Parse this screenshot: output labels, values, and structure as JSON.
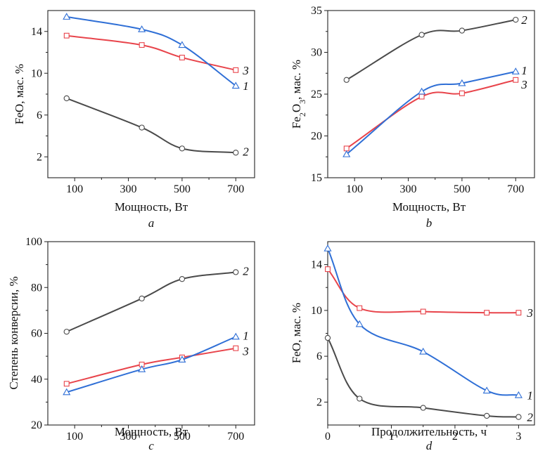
{
  "colors": {
    "s1": "#2f6fd6",
    "s2": "#4a4a4a",
    "s3": "#e8444b"
  },
  "chart_data": [
    {
      "id": "a",
      "type": "line",
      "panel_label": "a",
      "xlabel": "Мощность, Вт",
      "ylabel": "FeO, мас. %",
      "xlim": [
        0,
        770
      ],
      "ylim": [
        0,
        16
      ],
      "xticks": [
        100,
        300,
        500,
        700
      ],
      "yticks": [
        2,
        6,
        10,
        14
      ],
      "xtick_labels": [
        "100",
        "300",
        "500",
        "700"
      ],
      "ytick_labels": [
        "2",
        "6",
        "10",
        "14"
      ],
      "series": [
        {
          "label": "1",
          "marker": "triangle",
          "x": [
            70,
            350,
            500,
            700
          ],
          "y": [
            15.4,
            14.2,
            12.7,
            8.8
          ]
        },
        {
          "label": "2",
          "marker": "circle",
          "x": [
            70,
            350,
            500,
            700
          ],
          "y": [
            7.6,
            4.8,
            2.8,
            2.4
          ]
        },
        {
          "label": "3",
          "marker": "square",
          "x": [
            70,
            350,
            500,
            700
          ],
          "y": [
            13.6,
            12.7,
            11.5,
            10.3
          ]
        }
      ]
    },
    {
      "id": "b",
      "type": "line",
      "panel_label": "b",
      "xlabel": "Мощность, Вт",
      "ylabel_parts": [
        "Fe",
        "2",
        "O",
        "3",
        ", мас. %"
      ],
      "xlim": [
        0,
        770
      ],
      "ylim": [
        15,
        35
      ],
      "xticks": [
        100,
        300,
        500,
        700
      ],
      "yticks": [
        15,
        20,
        25,
        30,
        35
      ],
      "xtick_labels": [
        "100",
        "300",
        "500",
        "700"
      ],
      "ytick_labels": [
        "15",
        "20",
        "25",
        "30",
        "35"
      ],
      "series": [
        {
          "label": "1",
          "marker": "triangle",
          "x": [
            70,
            350,
            500,
            700
          ],
          "y": [
            17.8,
            25.3,
            26.3,
            27.7
          ]
        },
        {
          "label": "2",
          "marker": "circle",
          "x": [
            70,
            350,
            500,
            700
          ],
          "y": [
            26.7,
            32.1,
            32.6,
            33.9
          ]
        },
        {
          "label": "3",
          "marker": "square",
          "x": [
            70,
            350,
            500,
            700
          ],
          "y": [
            18.5,
            24.7,
            25.1,
            26.7
          ]
        }
      ]
    },
    {
      "id": "c",
      "type": "line",
      "panel_label": "c",
      "xlabel": "Мощность, Вт",
      "ylabel": "Степень конверсии, %",
      "xlim": [
        0,
        770
      ],
      "ylim": [
        20,
        100
      ],
      "xticks": [
        100,
        300,
        500,
        700
      ],
      "yticks": [
        20,
        40,
        60,
        80,
        100
      ],
      "xtick_labels": [
        "100",
        "300",
        "500",
        "700"
      ],
      "ytick_labels": [
        "20",
        "40",
        "60",
        "80",
        "100"
      ],
      "series": [
        {
          "label": "1",
          "marker": "triangle",
          "x": [
            70,
            350,
            500,
            700
          ],
          "y": [
            34.3,
            44.3,
            48.5,
            58.5
          ]
        },
        {
          "label": "2",
          "marker": "circle",
          "x": [
            70,
            350,
            500,
            700
          ],
          "y": [
            60.7,
            75.2,
            83.7,
            86.7
          ]
        },
        {
          "label": "3",
          "marker": "square",
          "x": [
            70,
            350,
            500,
            700
          ],
          "y": [
            38.0,
            46.4,
            49.5,
            53.5
          ]
        }
      ]
    },
    {
      "id": "d",
      "type": "line",
      "panel_label": "d",
      "xlabel": "Продолжительность, ч",
      "ylabel": "FeO, мас. %",
      "xlim": [
        0,
        3.25
      ],
      "ylim": [
        0,
        16
      ],
      "xticks": [
        0,
        1,
        2,
        3
      ],
      "yticks": [
        2,
        6,
        10,
        14
      ],
      "xtick_labels": [
        "0",
        "1",
        "2",
        "3"
      ],
      "ytick_labels": [
        "2",
        "6",
        "10",
        "14"
      ],
      "series": [
        {
          "label": "1",
          "marker": "triangle",
          "x": [
            0,
            0.5,
            1.5,
            2.5,
            3
          ],
          "y": [
            15.4,
            8.8,
            6.4,
            3.0,
            2.6
          ]
        },
        {
          "label": "2",
          "marker": "circle",
          "x": [
            0,
            0.5,
            1.5,
            2.5,
            3
          ],
          "y": [
            7.6,
            2.3,
            1.5,
            0.8,
            0.7
          ]
        },
        {
          "label": "3",
          "marker": "square",
          "x": [
            0,
            0.5,
            1.5,
            2.5,
            3
          ],
          "y": [
            13.6,
            10.2,
            9.9,
            9.8,
            9.8
          ]
        }
      ]
    }
  ]
}
